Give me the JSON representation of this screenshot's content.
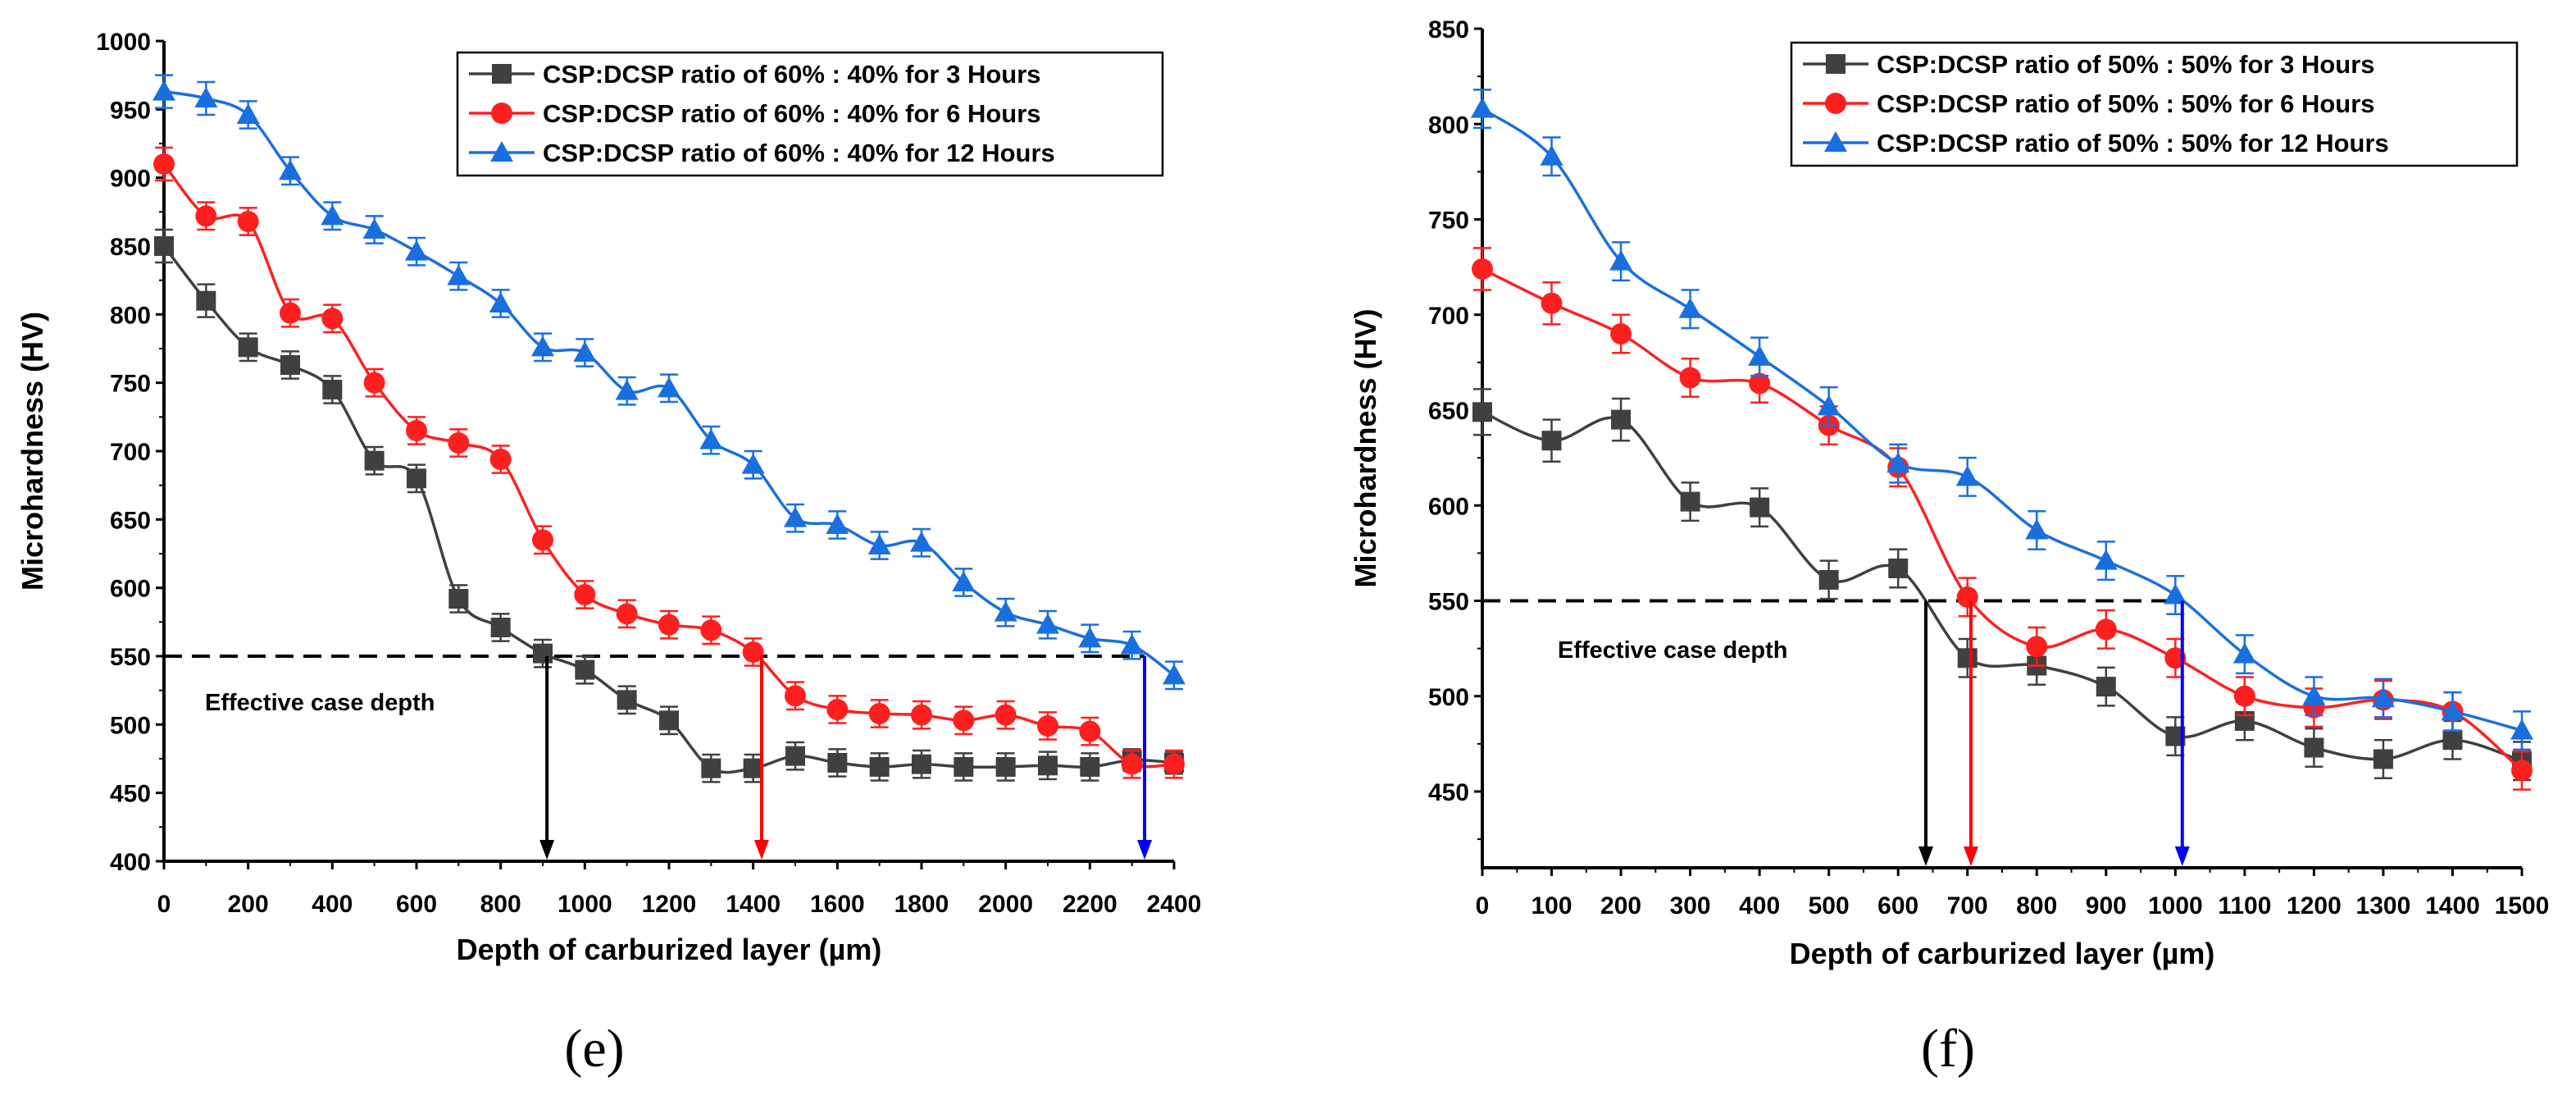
{
  "chart_data": [
    {
      "type": "line",
      "panel_label": "(e)",
      "title": "",
      "xlabel": "Depth of carburized layer (µm)",
      "ylabel": "Microhardness (HV)",
      "xlim": [
        0,
        2400
      ],
      "ylim": [
        400,
        1000
      ],
      "xticks": [
        0,
        200,
        400,
        600,
        800,
        1000,
        1200,
        1400,
        1600,
        1800,
        2000,
        2200,
        2400
      ],
      "yticks": [
        400,
        450,
        500,
        550,
        600,
        650,
        700,
        750,
        800,
        850,
        900,
        950,
        1000
      ],
      "legend_position": "top-right",
      "series": [
        {
          "name": "CSP:DCSP ratio of 60% : 40% for 3 Hours",
          "color": "#404040",
          "marker": "square",
          "x": [
            0,
            100,
            200,
            300,
            400,
            500,
            600,
            700,
            800,
            900,
            1000,
            1100,
            1200,
            1300,
            1400,
            1500,
            1600,
            1700,
            1800,
            1900,
            2000,
            2100,
            2200,
            2300,
            2400
          ],
          "values": [
            850,
            810,
            776,
            763,
            745,
            693,
            680,
            592,
            571,
            552,
            540,
            518,
            503,
            468,
            468,
            477,
            472,
            469,
            471,
            469,
            469,
            470,
            469,
            474,
            472
          ],
          "error": [
            12,
            12,
            10,
            10,
            10,
            10,
            10,
            10,
            10,
            10,
            10,
            10,
            10,
            10,
            10,
            10,
            10,
            10,
            10,
            10,
            10,
            10,
            10,
            8,
            8
          ]
        },
        {
          "name": "CSP:DCSP ratio of 60% : 40% for 6 Hours",
          "color": "#ff1f1f",
          "marker": "circle",
          "x": [
            0,
            100,
            200,
            300,
            400,
            500,
            600,
            700,
            800,
            900,
            1000,
            1100,
            1200,
            1300,
            1400,
            1500,
            1600,
            1700,
            1800,
            1900,
            2000,
            2100,
            2200,
            2300,
            2400
          ],
          "values": [
            910,
            872,
            868,
            801,
            797,
            750,
            715,
            706,
            694,
            635,
            595,
            581,
            573,
            569,
            553,
            521,
            511,
            508,
            507,
            503,
            507,
            499,
            495,
            471,
            471
          ],
          "error": [
            12,
            10,
            10,
            10,
            10,
            10,
            10,
            10,
            10,
            10,
            10,
            10,
            10,
            10,
            10,
            10,
            10,
            10,
            10,
            10,
            10,
            10,
            10,
            10,
            10
          ]
        },
        {
          "name": "CSP:DCSP ratio of 60% : 40% for 12 Hours",
          "color": "#1a6fdf",
          "marker": "triangle",
          "x": [
            0,
            100,
            200,
            300,
            400,
            500,
            600,
            700,
            800,
            900,
            1000,
            1100,
            1200,
            1300,
            1400,
            1500,
            1600,
            1700,
            1800,
            1900,
            2000,
            2100,
            2200,
            2300,
            2400
          ],
          "values": [
            963,
            958,
            946,
            905,
            872,
            862,
            846,
            828,
            808,
            776,
            772,
            744,
            746,
            708,
            690,
            651,
            646,
            631,
            633,
            604,
            582,
            573,
            563,
            558,
            536
          ],
          "error": [
            12,
            12,
            10,
            10,
            10,
            10,
            10,
            10,
            10,
            10,
            10,
            10,
            10,
            10,
            10,
            10,
            10,
            10,
            10,
            10,
            10,
            10,
            10,
            10,
            10
          ]
        }
      ],
      "threshold": {
        "value": 550,
        "label": "Effective case depth"
      },
      "case_depth_markers": [
        {
          "x": 910,
          "color": "#000000"
        },
        {
          "x": 1420,
          "color": "#ff0000"
        },
        {
          "x": 2330,
          "color": "#0000ff"
        }
      ]
    },
    {
      "type": "line",
      "panel_label": "(f)",
      "title": "",
      "xlabel": "Depth of carburized layer (µm)",
      "ylabel": "Microhardness (HV)",
      "xlim": [
        0,
        1500
      ],
      "ylim": [
        410,
        850
      ],
      "xticks": [
        0,
        100,
        200,
        300,
        400,
        500,
        600,
        700,
        800,
        900,
        1000,
        1100,
        1200,
        1300,
        1400,
        1500
      ],
      "yticks": [
        450,
        500,
        550,
        600,
        650,
        700,
        750,
        800,
        850
      ],
      "legend_position": "top-right",
      "series": [
        {
          "name": "CSP:DCSP ratio of 50% : 50% for 3 Hours",
          "color": "#404040",
          "marker": "square",
          "x": [
            0,
            100,
            200,
            300,
            400,
            500,
            600,
            700,
            800,
            900,
            1000,
            1100,
            1200,
            1300,
            1400,
            1500
          ],
          "values": [
            649,
            634,
            645,
            602,
            599,
            561,
            567,
            520,
            516,
            505,
            479,
            487,
            473,
            467,
            477,
            466
          ],
          "error": [
            12,
            11,
            11,
            10,
            10,
            10,
            10,
            10,
            10,
            10,
            10,
            10,
            10,
            10,
            10,
            10
          ]
        },
        {
          "name": "CSP:DCSP ratio of 50% : 50% for 6 Hours",
          "color": "#ff1f1f",
          "marker": "circle",
          "x": [
            0,
            100,
            200,
            300,
            400,
            500,
            600,
            700,
            800,
            900,
            1000,
            1100,
            1200,
            1300,
            1400,
            1500
          ],
          "values": [
            724,
            706,
            690,
            667,
            664,
            642,
            620,
            552,
            526,
            535,
            520,
            500,
            494,
            498,
            492,
            461
          ],
          "error": [
            11,
            11,
            10,
            10,
            10,
            10,
            10,
            10,
            10,
            10,
            10,
            10,
            10,
            10,
            10,
            10
          ]
        },
        {
          "name": "CSP:DCSP ratio of 50% : 50% for 12 Hours",
          "color": "#1a6fdf",
          "marker": "triangle",
          "x": [
            0,
            100,
            200,
            300,
            400,
            500,
            600,
            700,
            800,
            900,
            1000,
            1100,
            1200,
            1300,
            1400,
            1500
          ],
          "values": [
            808,
            783,
            728,
            703,
            678,
            652,
            622,
            615,
            587,
            571,
            553,
            522,
            500,
            499,
            492,
            482
          ],
          "error": [
            10,
            10,
            10,
            10,
            10,
            10,
            10,
            10,
            10,
            10,
            10,
            10,
            10,
            10,
            10,
            10
          ]
        }
      ],
      "threshold": {
        "value": 550,
        "label": "Effective case depth"
      },
      "case_depth_markers": [
        {
          "x": 640,
          "color": "#000000"
        },
        {
          "x": 705,
          "color": "#ff0000"
        },
        {
          "x": 1010,
          "color": "#0000ff"
        }
      ]
    }
  ]
}
